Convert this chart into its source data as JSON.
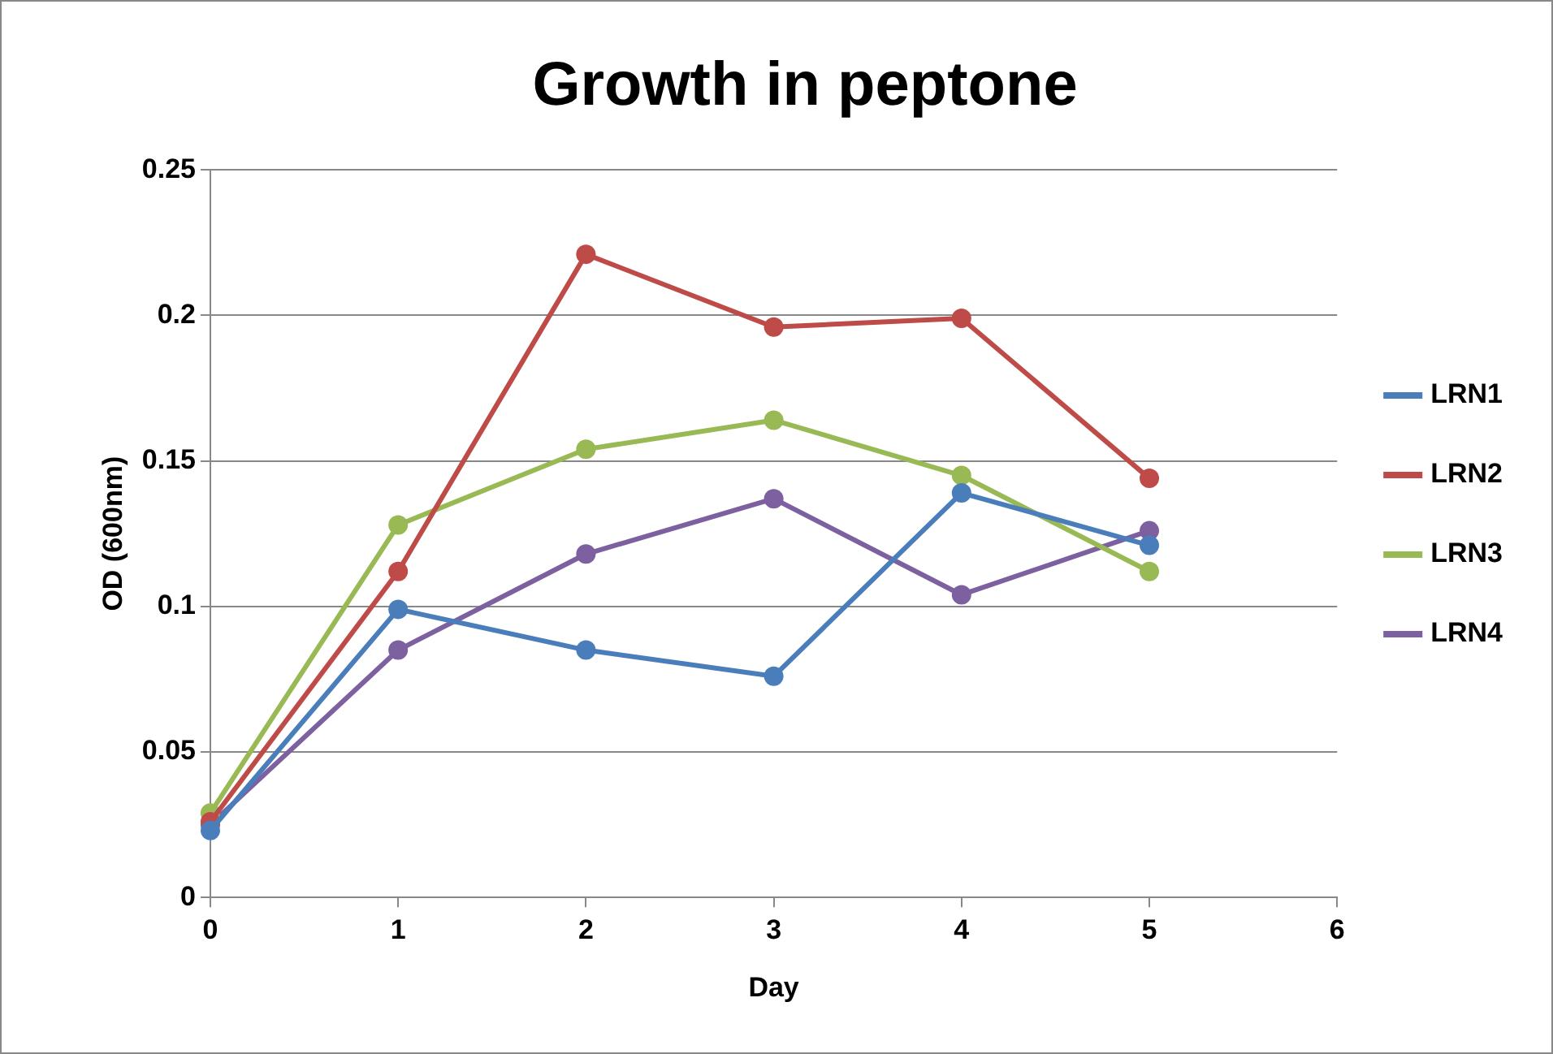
{
  "chart_data": {
    "type": "line",
    "title": "Growth in peptone",
    "xlabel": "Day",
    "ylabel": "OD (600nm)",
    "x": [
      0,
      1,
      2,
      3,
      4,
      5
    ],
    "series": [
      {
        "name": "LRN1",
        "color": "#4a7ebb",
        "values": [
          0.023,
          0.099,
          0.085,
          0.076,
          0.139,
          0.121
        ]
      },
      {
        "name": "LRN2",
        "color": "#be4b48",
        "values": [
          0.026,
          0.112,
          0.221,
          0.196,
          0.199,
          0.144
        ]
      },
      {
        "name": "LRN3",
        "color": "#98b954",
        "values": [
          0.029,
          0.128,
          0.154,
          0.164,
          0.145,
          0.112
        ]
      },
      {
        "name": "LRN4",
        "color": "#7d60a0",
        "values": [
          0.025,
          0.085,
          0.118,
          0.137,
          0.104,
          0.126
        ]
      }
    ],
    "xlim": [
      0,
      6
    ],
    "xticks": [
      0,
      1,
      2,
      3,
      4,
      5,
      6
    ],
    "ylim": [
      0,
      0.25
    ],
    "yticks": [
      0,
      0.05,
      0.1,
      0.15,
      0.2,
      0.25
    ],
    "grid": "y",
    "legend": "right",
    "marker": "circle",
    "line_style": "solid"
  }
}
